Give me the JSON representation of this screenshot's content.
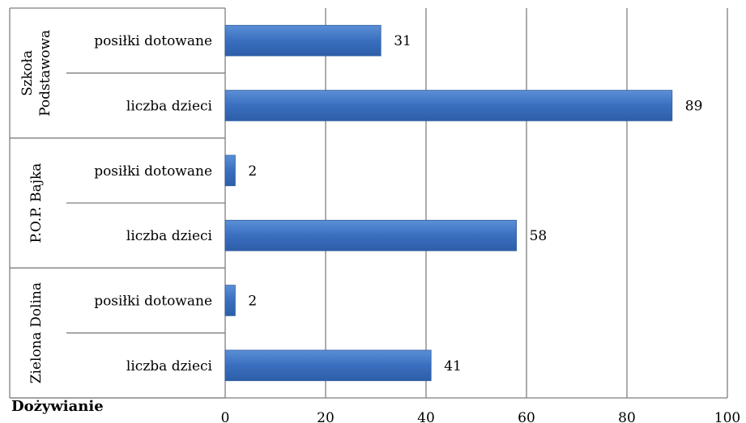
{
  "chart_data": {
    "type": "bar",
    "orientation": "horizontal",
    "title": "Dożywianie",
    "xlim": [
      0,
      100
    ],
    "x_ticks": [
      0,
      20,
      40,
      60,
      80,
      100
    ],
    "grid": true,
    "bar_color": "#3a6fbf",
    "groups": [
      {
        "name": "Szkoła Podstawowa",
        "name_lines": [
          "Szkoła",
          "Podstawowa"
        ],
        "bars": [
          {
            "label": "posiłki dotowane",
            "value": 31
          },
          {
            "label": "liczba dzieci",
            "value": 89
          }
        ]
      },
      {
        "name": "P.O.P. Bajka",
        "name_lines": [
          "P.O.P. Bajka"
        ],
        "bars": [
          {
            "label": "posiłki dotowane",
            "value": 2
          },
          {
            "label": "liczba dzieci",
            "value": 58
          }
        ]
      },
      {
        "name": "Zielona Dolina",
        "name_lines": [
          "Zielona Dolina"
        ],
        "bars": [
          {
            "label": "posiłki dotowane",
            "value": 2
          },
          {
            "label": "liczba dzieci",
            "value": 41
          }
        ]
      }
    ]
  }
}
